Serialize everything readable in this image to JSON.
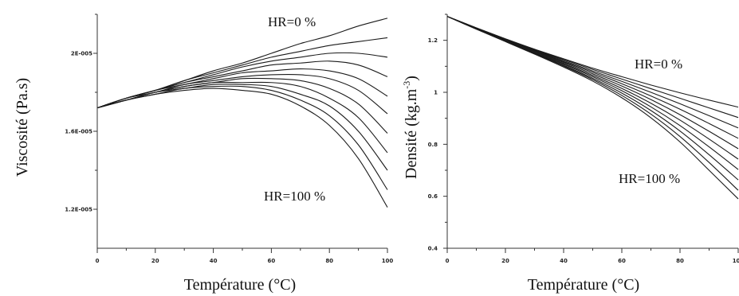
{
  "chart_data": [
    {
      "type": "line",
      "xlabel": "Température (°C)",
      "ylabel": "Viscosité (Pa.s)",
      "xlim": [
        0,
        100
      ],
      "ylim": [
        1e-05,
        2.2e-05
      ],
      "x_ticks": [
        "0",
        "20",
        "40",
        "60",
        "80",
        "100"
      ],
      "y_ticks": [
        {
          "value": 1.2e-05,
          "label": "1.2E-005"
        },
        {
          "value": 1.6e-05,
          "label": "1.6E-005"
        },
        {
          "value": 2e-05,
          "label": "2E-005"
        }
      ],
      "annotations": {
        "top": "HR=0 %",
        "bottom": "HR=100 %"
      },
      "grid": false,
      "x": [
        0,
        10,
        20,
        30,
        40,
        50,
        60,
        70,
        80,
        90,
        100
      ],
      "series": [
        {
          "values": [
            1.72e-05,
            1.77e-05,
            1.81e-05,
            1.86e-05,
            1.91e-05,
            1.95e-05,
            2e-05,
            2.05e-05,
            2.09e-05,
            2.14e-05,
            2.18e-05
          ]
        },
        {
          "values": [
            1.72e-05,
            1.77e-05,
            1.81e-05,
            1.86e-05,
            1.9e-05,
            1.94e-05,
            1.98e-05,
            2.01e-05,
            2.04e-05,
            2.06e-05,
            2.08e-05
          ]
        },
        {
          "values": [
            1.72e-05,
            1.77e-05,
            1.81e-05,
            1.85e-05,
            1.89e-05,
            1.93e-05,
            1.96e-05,
            1.98e-05,
            2e-05,
            2e-05,
            1.98e-05
          ]
        },
        {
          "values": [
            1.72e-05,
            1.77e-05,
            1.81e-05,
            1.85e-05,
            1.88e-05,
            1.91e-05,
            1.94e-05,
            1.95e-05,
            1.96e-05,
            1.94e-05,
            1.88e-05
          ]
        },
        {
          "values": [
            1.72e-05,
            1.77e-05,
            1.81e-05,
            1.84e-05,
            1.87e-05,
            1.9e-05,
            1.91e-05,
            1.92e-05,
            1.91e-05,
            1.87e-05,
            1.78e-05
          ]
        },
        {
          "values": [
            1.72e-05,
            1.77e-05,
            1.8e-05,
            1.84e-05,
            1.86e-05,
            1.88e-05,
            1.89e-05,
            1.89e-05,
            1.87e-05,
            1.81e-05,
            1.69e-05
          ]
        },
        {
          "values": [
            1.72e-05,
            1.76e-05,
            1.8e-05,
            1.83e-05,
            1.85e-05,
            1.87e-05,
            1.87e-05,
            1.86e-05,
            1.82e-05,
            1.74e-05,
            1.59e-05
          ]
        },
        {
          "values": [
            1.72e-05,
            1.76e-05,
            1.8e-05,
            1.83e-05,
            1.85e-05,
            1.85e-05,
            1.85e-05,
            1.83e-05,
            1.77e-05,
            1.67e-05,
            1.49e-05
          ]
        },
        {
          "values": [
            1.72e-05,
            1.76e-05,
            1.8e-05,
            1.82e-05,
            1.84e-05,
            1.84e-05,
            1.83e-05,
            1.79e-05,
            1.73e-05,
            1.6e-05,
            1.4e-05
          ]
        },
        {
          "values": [
            1.72e-05,
            1.76e-05,
            1.79e-05,
            1.82e-05,
            1.83e-05,
            1.83e-05,
            1.81e-05,
            1.76e-05,
            1.68e-05,
            1.53e-05,
            1.3e-05
          ]
        },
        {
          "values": [
            1.72e-05,
            1.76e-05,
            1.79e-05,
            1.81e-05,
            1.82e-05,
            1.81e-05,
            1.79e-05,
            1.73e-05,
            1.63e-05,
            1.46e-05,
            1.21e-05
          ]
        }
      ]
    },
    {
      "type": "line",
      "xlabel": "Température (°C)",
      "ylabel_main": "Densité (kg.m",
      "ylabel_sup": "-3",
      "ylabel_close": ")",
      "xlim": [
        0,
        100
      ],
      "ylim": [
        0.4,
        1.3
      ],
      "x_ticks": [
        "0",
        "20",
        "40",
        "60",
        "80",
        "100"
      ],
      "y_ticks": [
        {
          "value": 0.4,
          "label": "0.4"
        },
        {
          "value": 0.6,
          "label": "0.6"
        },
        {
          "value": 0.8,
          "label": "0.8"
        },
        {
          "value": 1.0,
          "label": "1"
        },
        {
          "value": 1.2,
          "label": "1.2"
        }
      ],
      "annotations": {
        "top": "HR=0 %",
        "bottom": "HR=100 %"
      },
      "grid": false,
      "x": [
        0,
        10,
        20,
        30,
        40,
        50,
        60,
        70,
        80,
        90,
        100
      ],
      "series": [
        {
          "values": [
            1.292,
            1.248,
            1.206,
            1.166,
            1.129,
            1.093,
            1.06,
            1.028,
            0.998,
            0.97,
            0.943
          ]
        },
        {
          "values": [
            1.292,
            1.248,
            1.205,
            1.164,
            1.126,
            1.088,
            1.051,
            1.014,
            0.977,
            0.94,
            0.903
          ]
        },
        {
          "values": [
            1.292,
            1.247,
            1.203,
            1.162,
            1.122,
            1.082,
            1.042,
            1.0,
            0.956,
            0.91,
            0.863
          ]
        },
        {
          "values": [
            1.292,
            1.246,
            1.202,
            1.16,
            1.118,
            1.077,
            1.033,
            0.986,
            0.935,
            0.88,
            0.823
          ]
        },
        {
          "values": [
            1.292,
            1.246,
            1.201,
            1.158,
            1.115,
            1.071,
            1.024,
            0.972,
            0.914,
            0.85,
            0.783
          ]
        },
        {
          "values": [
            1.292,
            1.245,
            1.2,
            1.156,
            1.111,
            1.065,
            1.015,
            0.958,
            0.893,
            0.82,
            0.743
          ]
        },
        {
          "values": [
            1.292,
            1.245,
            1.199,
            1.153,
            1.108,
            1.06,
            1.006,
            0.944,
            0.872,
            0.79,
            0.703
          ]
        },
        {
          "values": [
            1.292,
            1.244,
            1.197,
            1.151,
            1.104,
            1.054,
            0.997,
            0.93,
            0.851,
            0.76,
            0.663
          ]
        },
        {
          "values": [
            1.292,
            1.243,
            1.196,
            1.149,
            1.101,
            1.049,
            0.988,
            0.916,
            0.83,
            0.73,
            0.623
          ]
        },
        {
          "values": [
            1.292,
            1.243,
            1.195,
            1.147,
            1.097,
            1.043,
            0.979,
            0.902,
            0.809,
            0.7,
            0.59
          ]
        }
      ]
    }
  ]
}
